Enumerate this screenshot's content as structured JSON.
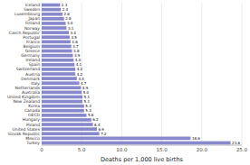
{
  "chart_data": {
    "type": "bar",
    "orientation": "horizontal",
    "xlabel": "Deaths per 1,000 live births",
    "categories": [
      "Iceland",
      "Sweden",
      "Luxembourg",
      "Japan",
      "Finland",
      "Norway",
      "Czech Republic",
      "Portugal",
      "France",
      "Belgium",
      "Greece",
      "Germany",
      "Ireland",
      "Spain",
      "Switzerland",
      "Austria",
      "Denmark",
      "Italy",
      "Netherlands",
      "Australia",
      "United Kingdom",
      "New Zealand",
      "Korea",
      "Canada",
      "OECD",
      "Hungary",
      "Poland",
      "United States",
      "Slovak Republic",
      "Mexico",
      "Turkey"
    ],
    "values": [
      2.3,
      2.4,
      2.6,
      2.8,
      3.0,
      3.1,
      3.4,
      3.5,
      3.6,
      3.7,
      3.8,
      3.9,
      4.0,
      4.1,
      4.2,
      4.2,
      4.4,
      4.7,
      4.9,
      5.0,
      5.1,
      5.1,
      5.3,
      5.3,
      5.6,
      6.2,
      6.4,
      6.9,
      7.2,
      18.6,
      23.6
    ],
    "value_labels": [
      "2.3",
      "2.4",
      "2.6",
      "2.8",
      "3.0",
      "3.1",
      "3.4",
      "3.5",
      "3.6",
      "3.7",
      "3.8",
      "3.9",
      "4.0",
      "4.1",
      "4.2",
      "4.2",
      "4.4",
      "4.7",
      "4.9",
      "5.0",
      "5.1",
      "5.1",
      "5.3",
      "5.3",
      "5.6",
      "6.2",
      "6.4",
      "6.9",
      "7.2",
      "18.6",
      "23.6"
    ],
    "color": "#8888cc",
    "xlim": [
      0,
      25
    ],
    "xticks": [
      0,
      {
        "value": 5,
        "label": "5.0"
      },
      {
        "value": 10,
        "label": "10.0"
      },
      {
        "value": 15,
        "label": "15.0"
      },
      {
        "value": 20,
        "label": "20.0"
      },
      {
        "value": 25,
        "label": "25.0"
      }
    ],
    "grid": true,
    "data_labels": true
  }
}
